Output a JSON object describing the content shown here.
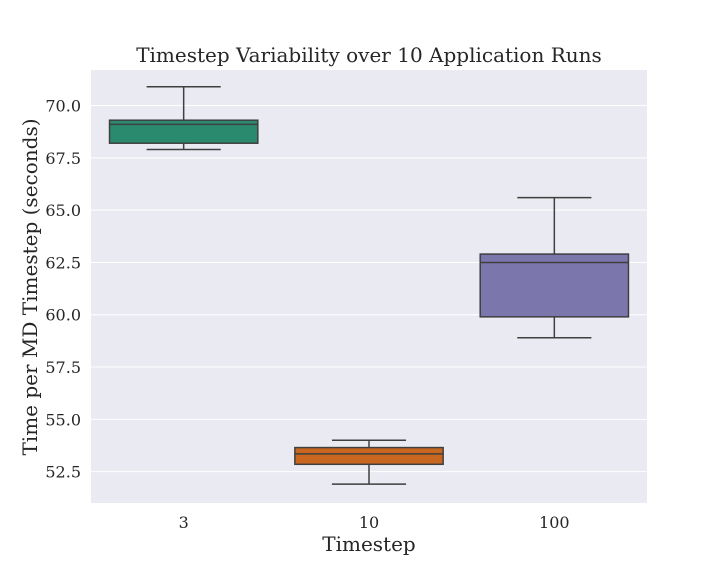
{
  "chart_data": {
    "type": "box",
    "title": "Timestep Variability over 10 Application Runs",
    "xlabel": "Timestep",
    "ylabel": "Time per MD Timestep (seconds)",
    "categories": [
      "3",
      "10",
      "100"
    ],
    "boxes": [
      {
        "category": "3",
        "whisker_low": 67.9,
        "q1": 68.2,
        "median": 69.1,
        "q3": 69.3,
        "whisker_high": 70.9,
        "color": "#2a8a6e"
      },
      {
        "category": "10",
        "whisker_low": 51.9,
        "q1": 52.85,
        "median": 53.35,
        "q3": 53.65,
        "whisker_high": 54.0,
        "color": "#c9661f"
      },
      {
        "category": "100",
        "whisker_low": 58.9,
        "q1": 59.9,
        "median": 62.5,
        "q3": 62.9,
        "whisker_high": 65.6,
        "color": "#7b77ad"
      }
    ],
    "ylim": [
      51.0,
      71.7
    ],
    "yticks": [
      52.5,
      55.0,
      57.5,
      60.0,
      62.5,
      65.0,
      67.5,
      70.0
    ],
    "ytick_labels": [
      "52.5",
      "55.0",
      "57.5",
      "60.0",
      "62.5",
      "65.0",
      "67.5",
      "70.0"
    ],
    "grid": true,
    "legend": "none",
    "colors": {
      "plot_background": "#eaeaf2",
      "grid": "#ffffff",
      "box_edge": "#3f3f3f"
    }
  }
}
